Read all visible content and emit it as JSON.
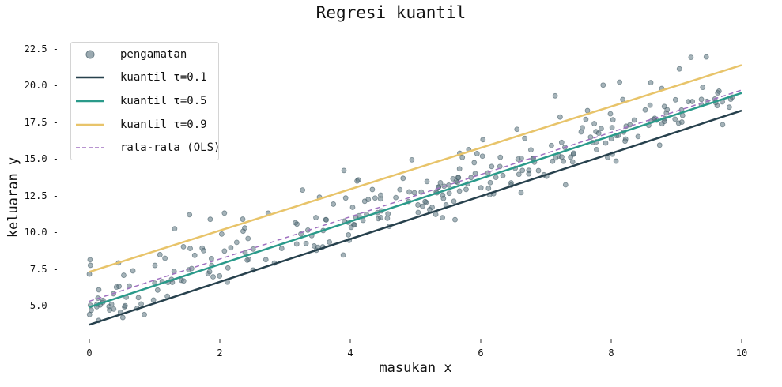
{
  "chart_data": {
    "type": "scatter",
    "title": "Regresi kuantil",
    "xlabel": "masukan x",
    "ylabel": "keluaran y",
    "xlim": [
      0,
      10
    ],
    "ylim": [
      2.7,
      23.5
    ],
    "xticks": [
      0,
      2,
      4,
      6,
      8,
      10
    ],
    "xtick_labels": [
      "0",
      "2",
      "4",
      "6",
      "8",
      "10"
    ],
    "yticks": [
      5.0,
      7.5,
      10.0,
      12.5,
      15.0,
      17.5,
      20.0,
      22.5
    ],
    "ytick_labels": [
      "5.0",
      "7.5",
      "10.0",
      "12.5",
      "15.0",
      "17.5",
      "20.0",
      "22.5"
    ],
    "grid": false,
    "legend_position": "upper left",
    "series": [
      {
        "name": "pengamatan",
        "kind": "scatter",
        "color": "#5b7580",
        "n_points": 300,
        "description": "noisy points around y ≈ 5 + 1.45x with right-skewed (upward) noise"
      },
      {
        "name": "kuantil τ=0.1",
        "kind": "line",
        "color": "#27414d",
        "x": [
          0,
          10
        ],
        "y": [
          3.7,
          18.3
        ]
      },
      {
        "name": "kuantil τ=0.5",
        "kind": "line",
        "color": "#2a9a8a",
        "x": [
          0,
          10
        ],
        "y": [
          4.9,
          19.5
        ]
      },
      {
        "name": "kuantil τ=0.9",
        "kind": "line",
        "color": "#e8c46a",
        "x": [
          0,
          10
        ],
        "y": [
          7.3,
          21.4
        ]
      },
      {
        "name": "rata-rata (OLS)",
        "kind": "dashed-line",
        "color": "#a070c0",
        "x": [
          0,
          10
        ],
        "y": [
          5.3,
          19.7
        ]
      }
    ]
  },
  "legend": {
    "items": [
      {
        "label": "pengamatan"
      },
      {
        "label": "kuantil τ=0.1"
      },
      {
        "label": "kuantil τ=0.5"
      },
      {
        "label": "kuantil τ=0.9"
      },
      {
        "label": "rata-rata (OLS)"
      }
    ]
  }
}
